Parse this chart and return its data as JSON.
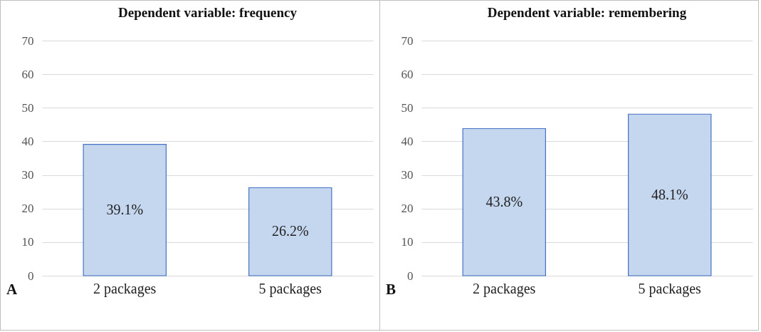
{
  "chart_data": [
    {
      "type": "bar",
      "title": "Dependent variable:  frequency",
      "categories": [
        "2 packages",
        "5 packages"
      ],
      "values": [
        39.1,
        26.2
      ],
      "value_labels": [
        "39.1%",
        "26.2%"
      ],
      "color": "#c5d7ee",
      "ylim": [
        0,
        70
      ],
      "yticks": [
        0,
        10,
        20,
        30,
        40,
        50,
        60,
        70
      ],
      "grid": "y",
      "annotations": [
        "A"
      ]
    },
    {
      "type": "bar",
      "title": "Dependent variable:  remembering",
      "categories": [
        "2 packages",
        "5 packages"
      ],
      "values": [
        43.8,
        48.1
      ],
      "value_labels": [
        "43.8%",
        "48.1%"
      ],
      "color": "#c5d7ee",
      "ylim": [
        0,
        70
      ],
      "yticks": [
        0,
        10,
        20,
        30,
        40,
        50,
        60,
        70
      ],
      "grid": "y",
      "annotations": [
        "B"
      ]
    }
  ]
}
